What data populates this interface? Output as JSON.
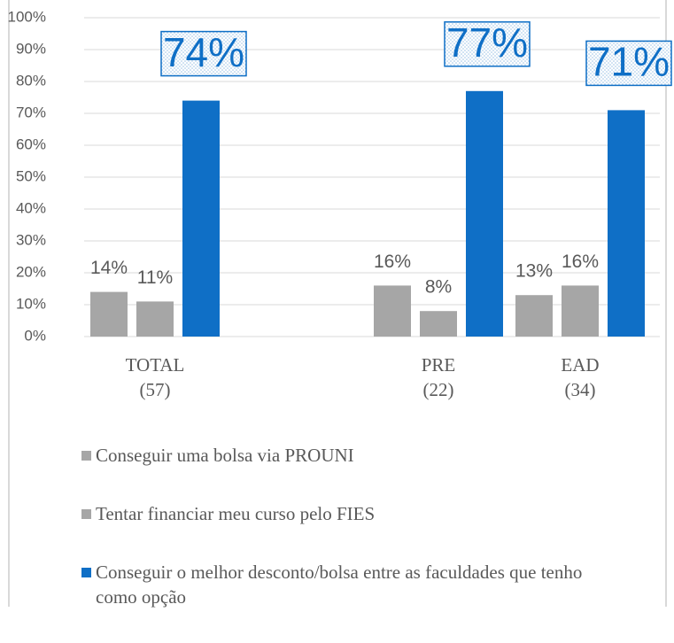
{
  "chart_data": {
    "type": "bar",
    "categories": [
      "TOTAL\n(57)",
      null,
      "PRE\n(22)",
      "EAD\n(34)"
    ],
    "series": [
      {
        "name": "Conseguir uma bolsa via PROUNI",
        "color": "#a6a6a6",
        "values": [
          14,
          null,
          16,
          13
        ],
        "value_labels": [
          "14%",
          null,
          "16%",
          "13%"
        ]
      },
      {
        "name": "Tentar financiar meu curso pelo FIES",
        "color": "#a6a6a6",
        "values": [
          11,
          null,
          8,
          16
        ],
        "value_labels": [
          "11%",
          null,
          "8%",
          "16%"
        ]
      },
      {
        "name": "Conseguir o melhor desconto/bolsa entre as faculdades que tenho como opção",
        "color": "#0f6fc6",
        "values": [
          74,
          null,
          77,
          71
        ],
        "value_labels": [
          "74%",
          null,
          "77%",
          "71%"
        ]
      }
    ],
    "ylim": [
      0,
      100
    ],
    "yticks": [
      {
        "value": 0,
        "label": "0%"
      },
      {
        "value": 10,
        "label": "10%"
      },
      {
        "value": 20,
        "label": "20%"
      },
      {
        "value": 30,
        "label": "30%"
      },
      {
        "value": 40,
        "label": "40%"
      },
      {
        "value": 50,
        "label": "50%"
      },
      {
        "value": 60,
        "label": "60%"
      },
      {
        "value": 70,
        "label": "70%"
      },
      {
        "value": 80,
        "label": "80%"
      },
      {
        "value": 90,
        "label": "90%"
      },
      {
        "value": 100,
        "label": "100%"
      }
    ],
    "grid": true
  }
}
